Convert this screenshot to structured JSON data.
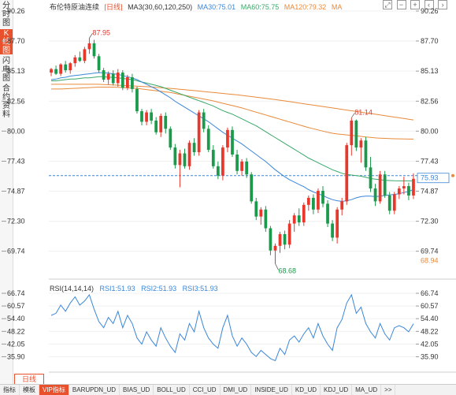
{
  "sidebar": {
    "tabs": [
      {
        "label": "分时图",
        "active": false
      },
      {
        "label": "K线图",
        "active": true
      },
      {
        "label": "闪电图",
        "active": false
      },
      {
        "label": "合约资料",
        "active": false
      }
    ]
  },
  "header": {
    "title": "布伦特原油连续",
    "period": "[日线]",
    "ma_label": "MA3(30,60,120,250)",
    "ma30": "MA30:75.01",
    "ma60": "MA60:75.75",
    "ma120": "MA120:79.32",
    "ma250": "MA"
  },
  "price_axis": {
    "ticks": [
      "90.26",
      "87.70",
      "85.13",
      "82.56",
      "80.00",
      "77.43",
      "74.87",
      "72.30",
      "69.74"
    ]
  },
  "price_markers": {
    "high": "87.95",
    "mid_high": "81.14",
    "low": "68.68",
    "current": "75.93",
    "low_axis": "68.94"
  },
  "rsi": {
    "label": "RSI(14,14,14)",
    "rsi1": "RSI1:51.93",
    "rsi2": "RSI2:51.93",
    "rsi3": "RSI3:51.93",
    "ticks": [
      "66.74",
      "60.57",
      "54.40",
      "48.22",
      "42.05",
      "35.90"
    ]
  },
  "time_axis": {
    "labels": [
      "2024/07",
      "2024/07/17 星期三",
      "08",
      "2024/09",
      "2024/10"
    ]
  },
  "period_button": "日线",
  "bottom_tabs": [
    "指标",
    "模板",
    "VIP指标",
    "BARUPDN_UD",
    "BIAS_UD",
    "BOLL_UD",
    "CCI_UD",
    "DMI_UD",
    "INSIDE_UD",
    "KD_UD",
    "KDJ_UD",
    "MA_UD",
    ">>"
  ],
  "colors": {
    "up": "#e8382c",
    "down": "#1a9a4a",
    "ma30": "#3a86d8",
    "ma60": "#3aa86a",
    "ma120": "#e98a3a",
    "rsi": "#3a86d8",
    "accent": "#e8512c"
  },
  "chart_data": {
    "type": "candlestick",
    "candles": [
      [
        85.0,
        85.4,
        84.7,
        85.3
      ],
      [
        85.3,
        85.6,
        84.8,
        84.9
      ],
      [
        84.9,
        85.8,
        84.7,
        85.7
      ],
      [
        85.7,
        86.0,
        85.0,
        85.2
      ],
      [
        85.2,
        85.9,
        84.9,
        85.8
      ],
      [
        85.8,
        86.5,
        85.5,
        86.3
      ],
      [
        86.3,
        86.8,
        85.9,
        86.0
      ],
      [
        86.0,
        87.2,
        85.8,
        87.0
      ],
      [
        87.0,
        87.95,
        86.6,
        87.5
      ],
      [
        87.5,
        87.8,
        86.2,
        86.4
      ],
      [
        86.4,
        86.6,
        85.0,
        85.2
      ],
      [
        85.2,
        85.4,
        84.2,
        84.4
      ],
      [
        84.4,
        85.1,
        84.0,
        84.9
      ],
      [
        84.9,
        85.2,
        83.9,
        84.1
      ],
      [
        84.1,
        85.3,
        83.8,
        85.0
      ],
      [
        85.0,
        85.2,
        83.5,
        83.7
      ],
      [
        83.7,
        84.8,
        83.5,
        84.6
      ],
      [
        84.6,
        84.9,
        83.3,
        83.6
      ],
      [
        83.6,
        83.8,
        81.5,
        81.7
      ],
      [
        81.7,
        81.9,
        80.5,
        80.8
      ],
      [
        80.8,
        81.8,
        80.5,
        81.6
      ],
      [
        81.6,
        81.9,
        80.6,
        80.9
      ],
      [
        80.9,
        81.2,
        79.7,
        79.9
      ],
      [
        79.9,
        81.5,
        79.5,
        81.3
      ],
      [
        81.3,
        81.6,
        79.8,
        80.2
      ],
      [
        80.2,
        80.4,
        78.4,
        78.6
      ],
      [
        78.6,
        78.9,
        76.8,
        77.1
      ],
      [
        77.1,
        78.4,
        75.2,
        78.1
      ],
      [
        78.1,
        78.5,
        76.8,
        77.0
      ],
      [
        77.0,
        79.2,
        76.7,
        79.0
      ],
      [
        79.0,
        79.4,
        77.9,
        78.2
      ],
      [
        78.2,
        81.8,
        77.9,
        81.6
      ],
      [
        81.6,
        81.9,
        79.9,
        80.2
      ],
      [
        80.2,
        80.5,
        78.2,
        78.4
      ],
      [
        78.4,
        78.8,
        76.8,
        77.0
      ],
      [
        77.0,
        77.4,
        75.9,
        76.2
      ],
      [
        76.2,
        78.8,
        75.8,
        78.6
      ],
      [
        78.6,
        80.3,
        78.2,
        80.1
      ],
      [
        80.1,
        80.4,
        77.8,
        78.0
      ],
      [
        78.0,
        78.4,
        76.3,
        76.6
      ],
      [
        76.6,
        77.6,
        76.2,
        77.4
      ],
      [
        77.4,
        77.7,
        76.0,
        76.3
      ],
      [
        76.3,
        76.5,
        73.8,
        74.0
      ],
      [
        74.0,
        74.3,
        72.4,
        72.7
      ],
      [
        72.7,
        73.5,
        72.0,
        73.3
      ],
      [
        73.3,
        73.6,
        71.4,
        71.7
      ],
      [
        71.7,
        71.9,
        69.4,
        69.8
      ],
      [
        69.8,
        70.4,
        68.68,
        70.2
      ],
      [
        70.2,
        71.4,
        69.6,
        71.2
      ],
      [
        71.2,
        71.5,
        69.9,
        70.3
      ],
      [
        70.3,
        72.4,
        70.0,
        72.1
      ],
      [
        72.1,
        73.0,
        71.4,
        72.8
      ],
      [
        72.8,
        73.4,
        71.9,
        72.2
      ],
      [
        72.2,
        73.9,
        71.9,
        73.7
      ],
      [
        73.7,
        74.5,
        73.2,
        74.3
      ],
      [
        74.3,
        74.6,
        72.9,
        73.3
      ],
      [
        73.3,
        75.1,
        73.0,
        74.9
      ],
      [
        74.9,
        75.3,
        73.5,
        73.8
      ],
      [
        73.8,
        74.1,
        71.8,
        72.1
      ],
      [
        72.1,
        72.4,
        70.6,
        70.9
      ],
      [
        70.9,
        73.5,
        70.4,
        73.3
      ],
      [
        73.3,
        74.3,
        72.8,
        74.0
      ],
      [
        74.0,
        79.0,
        73.7,
        78.8
      ],
      [
        78.8,
        81.14,
        77.9,
        80.9
      ],
      [
        80.9,
        81.0,
        78.3,
        78.6
      ],
      [
        78.6,
        79.4,
        77.3,
        79.2
      ],
      [
        79.2,
        79.5,
        76.6,
        76.9
      ],
      [
        76.9,
        77.8,
        74.8,
        75.1
      ],
      [
        75.1,
        75.5,
        73.6,
        74.0
      ],
      [
        74.0,
        76.6,
        73.8,
        76.3
      ],
      [
        76.3,
        76.6,
        74.3,
        74.5
      ],
      [
        74.5,
        74.8,
        72.9,
        73.2
      ],
      [
        73.2,
        74.8,
        72.9,
        74.6
      ],
      [
        74.6,
        75.3,
        74.2,
        75.1
      ],
      [
        75.1,
        76.1,
        74.6,
        75.3
      ],
      [
        75.3,
        75.6,
        74.1,
        74.5
      ],
      [
        74.5,
        76.4,
        74.2,
        75.93
      ]
    ],
    "ma30": [
      84.4,
      84.45,
      84.55,
      84.6,
      84.7,
      84.75,
      84.8,
      84.85,
      84.9,
      84.95,
      85.0,
      84.98,
      84.95,
      84.9,
      84.85,
      84.75,
      84.65,
      84.55,
      84.4,
      84.2,
      84.0,
      83.8,
      83.6,
      83.35,
      83.1,
      82.85,
      82.55,
      82.3,
      82.05,
      81.8,
      81.55,
      81.3,
      81.05,
      80.8,
      80.5,
      80.2,
      79.9,
      79.65,
      79.4,
      79.15,
      78.9,
      78.6,
      78.3,
      78.0,
      77.7,
      77.4,
      77.05,
      76.7,
      76.4,
      76.1,
      75.85,
      75.65,
      75.45,
      75.25,
      75.0,
      74.8,
      74.65,
      74.5,
      74.3,
      74.15,
      74.05,
      74.0,
      74.05,
      74.15,
      74.3,
      74.4,
      74.45,
      74.45,
      74.4,
      74.45,
      74.5,
      74.55,
      74.6,
      74.65,
      74.75,
      74.85,
      75.01
    ],
    "ma60": [
      84.3,
      84.3,
      84.35,
      84.4,
      84.45,
      84.45,
      84.5,
      84.55,
      84.55,
      84.6,
      84.65,
      84.65,
      84.6,
      84.6,
      84.55,
      84.5,
      84.45,
      84.4,
      84.3,
      84.2,
      84.1,
      84.0,
      83.9,
      83.8,
      83.65,
      83.5,
      83.35,
      83.2,
      83.05,
      82.9,
      82.75,
      82.6,
      82.45,
      82.3,
      82.15,
      81.95,
      81.75,
      81.6,
      81.45,
      81.25,
      81.05,
      80.85,
      80.65,
      80.45,
      80.2,
      79.95,
      79.7,
      79.45,
      79.2,
      78.95,
      78.7,
      78.45,
      78.2,
      77.95,
      77.7,
      77.5,
      77.3,
      77.1,
      76.9,
      76.7,
      76.55,
      76.4,
      76.3,
      76.25,
      76.2,
      76.15,
      76.05,
      75.95,
      75.9,
      75.85,
      75.8,
      75.78,
      75.76,
      75.75,
      75.75,
      75.75,
      75.75
    ],
    "ma120": [
      83.6,
      83.6,
      83.6,
      83.62,
      83.64,
      83.66,
      83.68,
      83.7,
      83.72,
      83.74,
      83.76,
      83.76,
      83.76,
      83.76,
      83.74,
      83.72,
      83.7,
      83.68,
      83.65,
      83.6,
      83.55,
      83.5,
      83.45,
      83.4,
      83.35,
      83.3,
      83.22,
      83.14,
      83.06,
      82.98,
      82.9,
      82.82,
      82.74,
      82.66,
      82.58,
      82.48,
      82.38,
      82.28,
      82.18,
      82.08,
      81.98,
      81.86,
      81.74,
      81.62,
      81.5,
      81.38,
      81.26,
      81.14,
      81.02,
      80.9,
      80.78,
      80.66,
      80.54,
      80.42,
      80.3,
      80.2,
      80.1,
      80.0,
      79.9,
      79.82,
      79.76,
      79.72,
      79.68,
      79.64,
      79.6,
      79.55,
      79.5,
      79.46,
      79.42,
      79.4,
      79.38,
      79.36,
      79.35,
      79.34,
      79.33,
      79.32,
      79.32
    ],
    "ma250": [
      84.0,
      84.0,
      84.0,
      84.0,
      84.0,
      84.0,
      84.0,
      84.0,
      84.0,
      84.0,
      84.0,
      83.98,
      83.96,
      83.94,
      83.92,
      83.9,
      83.88,
      83.86,
      83.84,
      83.82,
      83.8,
      83.77,
      83.74,
      83.71,
      83.68,
      83.65,
      83.62,
      83.58,
      83.54,
      83.5,
      83.46,
      83.42,
      83.38,
      83.34,
      83.3,
      83.26,
      83.22,
      83.18,
      83.14,
      83.1,
      83.05,
      83.0,
      82.95,
      82.9,
      82.85,
      82.8,
      82.75,
      82.7,
      82.64,
      82.58,
      82.52,
      82.46,
      82.4,
      82.34,
      82.28,
      82.22,
      82.16,
      82.1,
      82.04,
      81.98,
      81.92,
      81.86,
      81.8,
      81.74,
      81.68,
      81.62,
      81.56,
      81.5,
      81.44,
      81.38,
      81.32,
      81.26,
      81.2,
      81.14,
      81.08,
      81.02,
      80.96
    ],
    "rsi": [
      56,
      57,
      61,
      58,
      62,
      65,
      61,
      63,
      66,
      59,
      53,
      50,
      55,
      52,
      58,
      50,
      56,
      52,
      45,
      42,
      48,
      44,
      41,
      50,
      45,
      41,
      38,
      47,
      44,
      52,
      48,
      58,
      50,
      45,
      42,
      40,
      50,
      56,
      46,
      41,
      45,
      42,
      38,
      36,
      39,
      37,
      35,
      34,
      40,
      37,
      44,
      46,
      43,
      47,
      50,
      45,
      52,
      46,
      42,
      39,
      50,
      54,
      62,
      66,
      57,
      60,
      52,
      48,
      45,
      52,
      47,
      44,
      50,
      51,
      50,
      48,
      51.93
    ],
    "price_range": [
      68.3,
      90.26
    ],
    "rsi_range": [
      33.0,
      66.74
    ]
  }
}
